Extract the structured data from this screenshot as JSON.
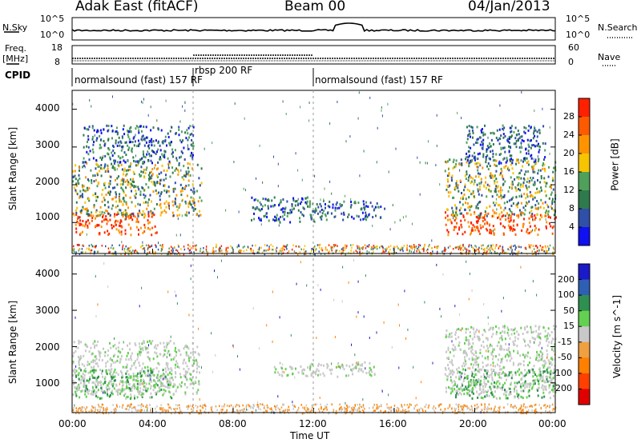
{
  "header": {
    "title": "Adak East (fitACF)",
    "beam": "Beam 00",
    "date": "04/Jan/2013"
  },
  "status": {
    "nsky_label": "N.Sky",
    "nsearch_label": "N.Search",
    "noise_ticks": [
      "10^5",
      "10^0"
    ],
    "noise_right_ticks": [
      "10^5",
      "10^0"
    ],
    "freq_label": "Freq.",
    "freq_unit": "[MHz]",
    "freq_ticks": [
      "18",
      "8"
    ],
    "nave_label": "Nave",
    "nave_ticks": [
      "60",
      "0"
    ],
    "cpid_label": "CPID"
  },
  "cpid_segments": [
    {
      "label": "normalsound (fast) 157 RF",
      "start": "00:00",
      "end": "06:00"
    },
    {
      "label": "rbsp 200 RF",
      "start": "06:00",
      "end": "12:00"
    },
    {
      "label": "normalsound (fast) 157 RF",
      "start": "12:00",
      "end": "24:00"
    }
  ],
  "chart_data": [
    {
      "type": "heatmap",
      "panel": "power",
      "ylabel": "Slant Range [km]",
      "ylim": [
        180,
        4500
      ],
      "yticks": [
        1000,
        2000,
        3000,
        4000
      ],
      "xlim": [
        "00:00",
        "24:00"
      ],
      "colorbar": {
        "label": "Power [dB]",
        "ticks": [
          "28",
          "24",
          "20",
          "16",
          "12",
          "8",
          "4"
        ],
        "colors": [
          "#ff2000",
          "#ff5a00",
          "#ff9400",
          "#f6c400",
          "#4fa05a",
          "#2f7a4c",
          "#2f4fa8",
          "#1010f0"
        ]
      },
      "echo_regions": [
        {
          "t0": 0.0,
          "t1": 4.2,
          "r0": 700,
          "r1": 1300,
          "level": "high"
        },
        {
          "t0": 0.0,
          "t1": 6.4,
          "r0": 1200,
          "r1": 2600,
          "level": "medium"
        },
        {
          "t0": 0.5,
          "t1": 6.0,
          "r0": 2600,
          "r1": 3600,
          "level": "low"
        },
        {
          "t0": 8.8,
          "t1": 12.0,
          "r0": 1000,
          "r1": 1700,
          "level": "low"
        },
        {
          "t0": 12.0,
          "t1": 15.5,
          "r0": 1100,
          "r1": 1600,
          "level": "low"
        },
        {
          "t0": 18.5,
          "t1": 24.0,
          "r0": 700,
          "r1": 1300,
          "level": "high"
        },
        {
          "t0": 18.5,
          "t1": 24.0,
          "r0": 1200,
          "r1": 2700,
          "level": "medium"
        },
        {
          "t0": 19.5,
          "t1": 23.5,
          "r0": 2600,
          "r1": 3600,
          "level": "low"
        }
      ]
    },
    {
      "type": "heatmap",
      "panel": "velocity",
      "ylabel": "Slant Range [km]",
      "ylim": [
        180,
        4500
      ],
      "yticks": [
        1000,
        2000,
        3000,
        4000
      ],
      "xlim": [
        "00:00",
        "24:00"
      ],
      "xticks": [
        "00:00",
        "04:00",
        "08:00",
        "12:00",
        "16:00",
        "20:00",
        "00:00"
      ],
      "xlabel": "Time UT",
      "colorbar": {
        "label": "Velocity [m s^-1]",
        "ticks": [
          "200",
          "100",
          "50",
          "15",
          "-15",
          "-50",
          "-100",
          "-200"
        ],
        "colors": [
          "#1a1ac8",
          "#2f5fb4",
          "#2f8f50",
          "#63d050",
          "#c8c8c8",
          "#f0a040",
          "#ff8000",
          "#ff4000",
          "#e00000"
        ]
      },
      "echo_regions": [
        {
          "t0": 0.0,
          "t1": 6.3,
          "r0": 700,
          "r1": 2200,
          "level": "near-zero"
        },
        {
          "t0": 0.0,
          "t1": 5.0,
          "r0": 600,
          "r1": 1400,
          "level": "slow-toward"
        },
        {
          "t0": 18.5,
          "t1": 24.0,
          "r0": 700,
          "r1": 2600,
          "level": "near-zero"
        },
        {
          "t0": 19.0,
          "t1": 24.0,
          "r0": 600,
          "r1": 1400,
          "level": "slow-toward"
        },
        {
          "t0": 10.0,
          "t1": 15.0,
          "r0": 1200,
          "r1": 1600,
          "level": "near-zero"
        }
      ]
    }
  ]
}
